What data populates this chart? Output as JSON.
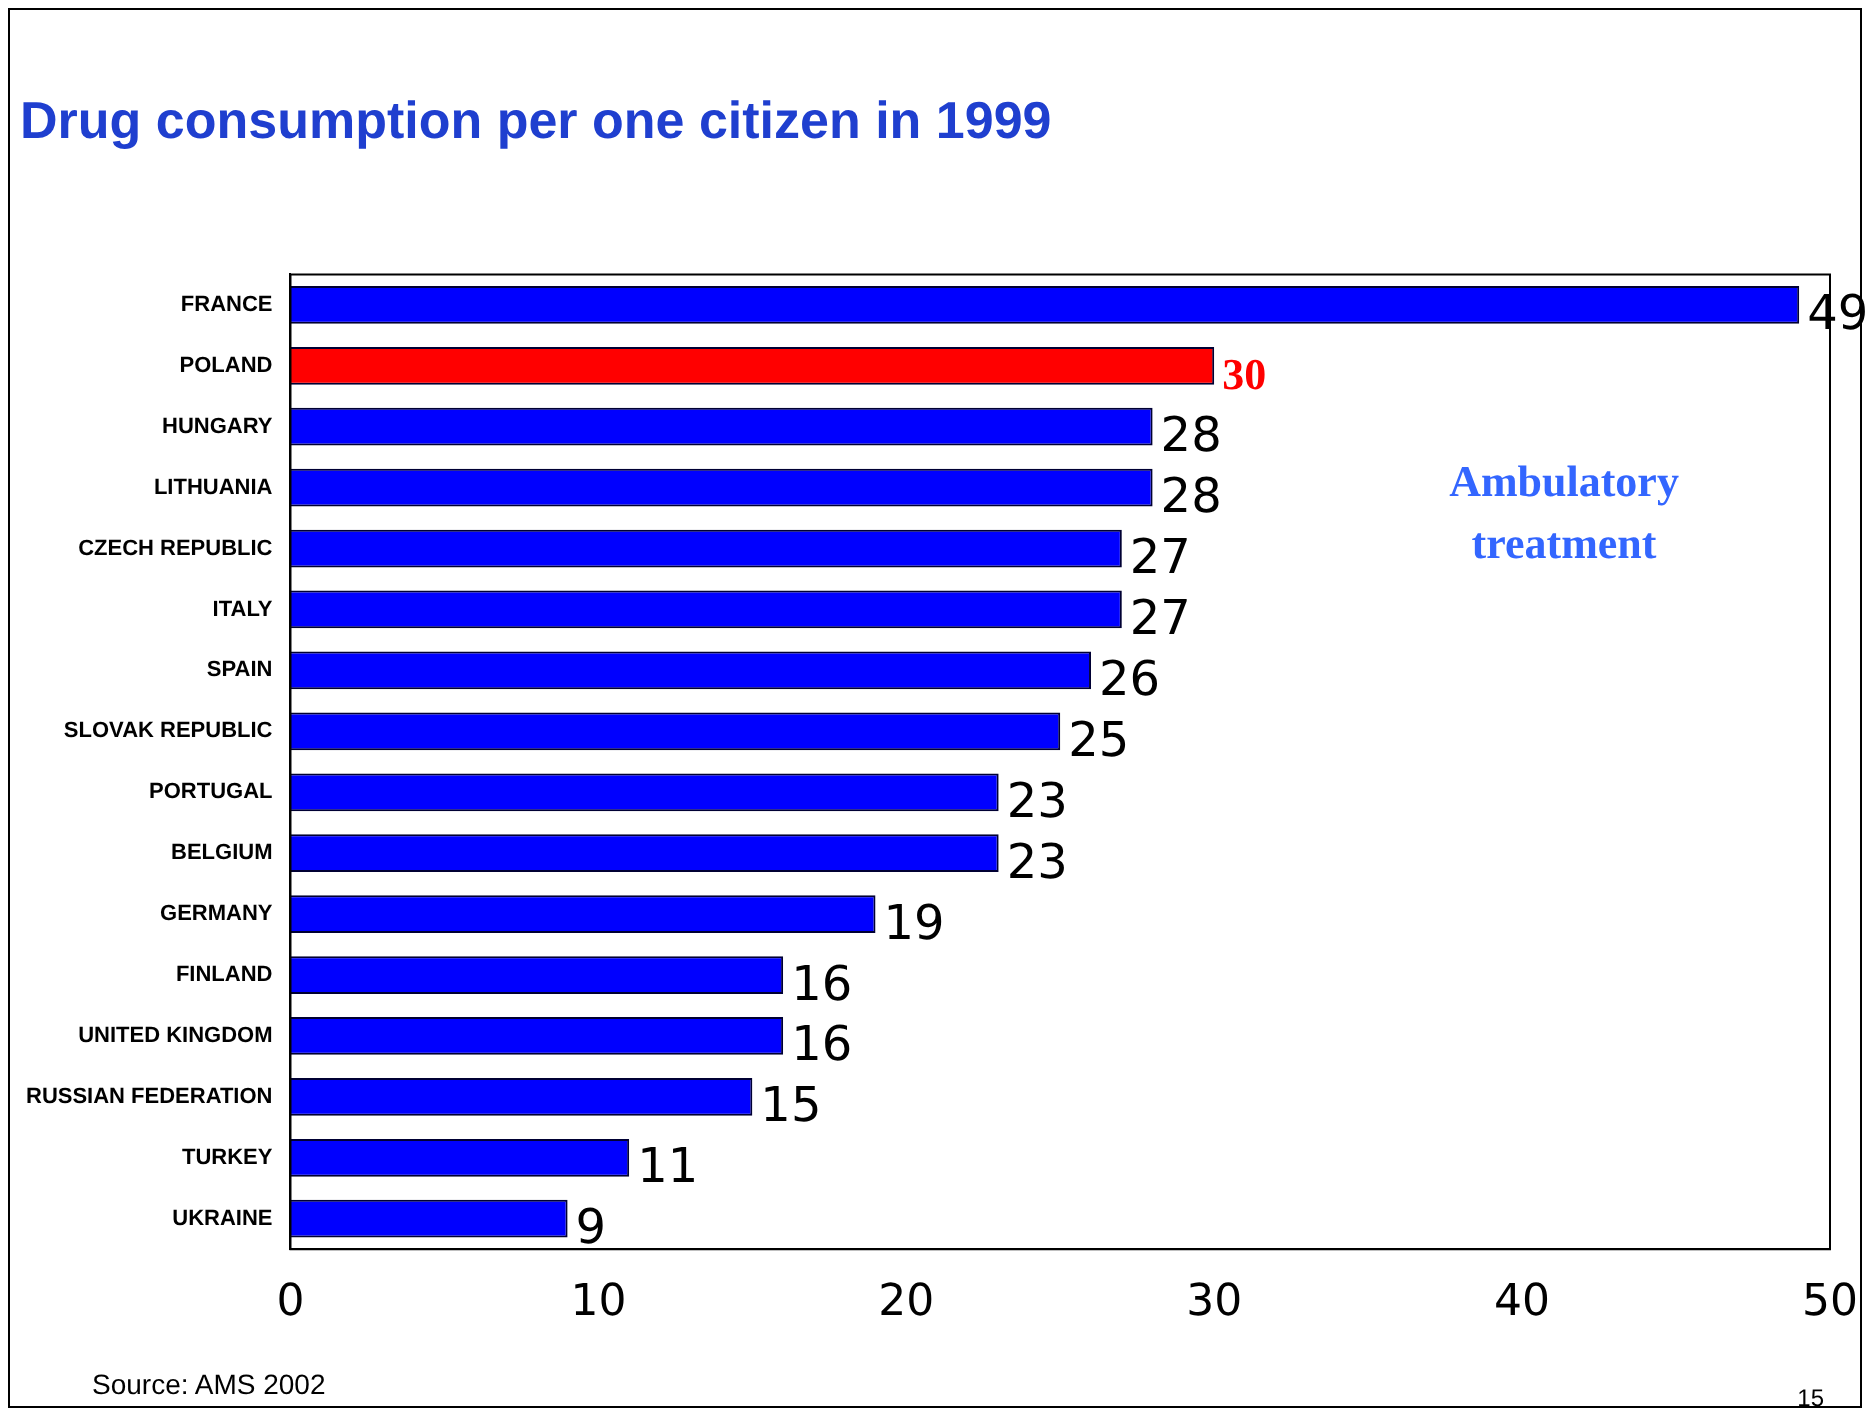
{
  "chart_data": {
    "type": "bar",
    "orientation": "horizontal",
    "title": "Drug consumption per one citizen in 1999",
    "categories": [
      "FRANCE",
      "POLAND",
      "HUNGARY",
      "LITHUANIA",
      "CZECH REPUBLIC",
      "ITALY",
      "SPAIN",
      "SLOVAK REPUBLIC",
      "PORTUGAL",
      "BELGIUM",
      "GERMANY",
      "FINLAND",
      "UNITED KINGDOM",
      "RUSSIAN FEDERATION",
      "TURKEY",
      "UKRAINE"
    ],
    "values": [
      49,
      30,
      28,
      28,
      27,
      27,
      26,
      25,
      23,
      23,
      19,
      16,
      16,
      15,
      11,
      9
    ],
    "colors": [
      "#0000ff",
      "#ff0000",
      "#0000ff",
      "#0000ff",
      "#0000ff",
      "#0000ff",
      "#0000ff",
      "#0000ff",
      "#0000ff",
      "#0000ff",
      "#0000ff",
      "#0000ff",
      "#0000ff",
      "#0000ff",
      "#0000ff",
      "#0000ff"
    ],
    "xlim": [
      0,
      50
    ],
    "xticks": [
      0,
      10,
      20,
      30,
      40,
      50
    ],
    "grid": false,
    "legend": false,
    "data_labels": true,
    "annotations": [
      "Ambulatory treatment",
      "Source: AMS 2002",
      "15"
    ]
  }
}
